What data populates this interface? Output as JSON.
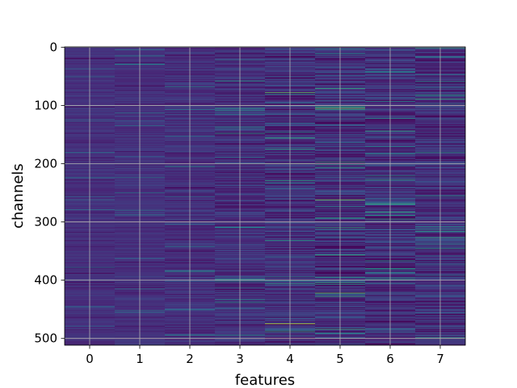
{
  "chart_data": {
    "type": "heatmap",
    "title": "",
    "xlabel": "features",
    "ylabel": "channels",
    "x_ticks": [
      "0",
      "1",
      "2",
      "3",
      "4",
      "5",
      "6",
      "7"
    ],
    "y_ticks": [
      "0",
      "100",
      "200",
      "300",
      "400",
      "500"
    ],
    "columns": 8,
    "rows": 512,
    "y_range": [
      0,
      511
    ],
    "y_inverted": true,
    "grid": true,
    "colormap": "viridis",
    "colormap_stops": [
      "#440154",
      "#482878",
      "#3e4989",
      "#31688e",
      "#26828e",
      "#1f9e89",
      "#35b779",
      "#6ece58",
      "#b5de2b",
      "#fde725"
    ],
    "column_spread": [
      0.1,
      0.12,
      0.16,
      0.22,
      0.28,
      0.3,
      0.3,
      0.28
    ],
    "bright_rows": [
      {
        "feature": 4,
        "channel": 78,
        "value": 0.75
      },
      {
        "feature": 5,
        "channel": 105,
        "value": 0.8
      },
      {
        "feature": 4,
        "channel": 200,
        "value": 0.7
      },
      {
        "feature": 5,
        "channel": 262,
        "value": 0.8
      },
      {
        "feature": 6,
        "channel": 283,
        "value": 0.65
      },
      {
        "feature": 7,
        "channel": 316,
        "value": 0.6
      },
      {
        "feature": 2,
        "channel": 385,
        "value": 0.55
      },
      {
        "feature": 5,
        "channel": 422,
        "value": 0.75
      },
      {
        "feature": 4,
        "channel": 475,
        "value": 0.9
      },
      {
        "feature": 3,
        "channel": 400,
        "value": 0.55
      },
      {
        "feature": 6,
        "channel": 228,
        "value": 0.6
      },
      {
        "feature": 7,
        "channel": 2,
        "value": 0.6
      }
    ]
  }
}
